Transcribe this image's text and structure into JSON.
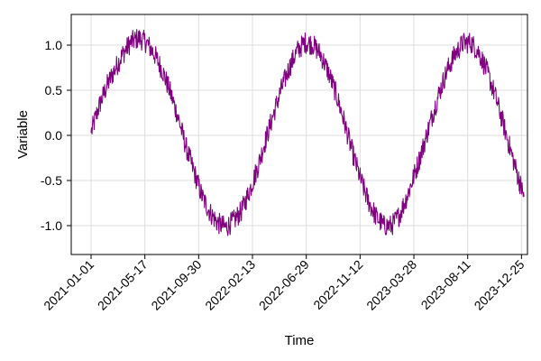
{
  "chart_data": {
    "type": "line",
    "title": "",
    "xlabel": "Time",
    "ylabel": "Variable",
    "x_range": [
      "2021-01-01",
      "2023-12-31"
    ],
    "ylim": [
      -1.32,
      1.34
    ],
    "grid": true,
    "x_ticks": [
      "2021-01-01",
      "2021-05-17",
      "2021-09-30",
      "2022-02-13",
      "2022-06-29",
      "2022-11-12",
      "2023-03-28",
      "2023-08-11",
      "2023-12-25"
    ],
    "y_ticks": [
      1.0,
      0.5,
      0.0,
      -0.5,
      -1.0
    ],
    "y_tick_labels": [
      "1.0",
      "0.5",
      "0.0",
      "-0.5",
      "-1.0"
    ],
    "series": [
      {
        "color": "#800080",
        "x": [
          "2021-01-01",
          "2021-01-21",
          "2021-02-10",
          "2021-03-02",
          "2021-03-22",
          "2021-04-11",
          "2021-05-01",
          "2021-05-21",
          "2021-06-10",
          "2021-06-30",
          "2021-07-20",
          "2021-08-09",
          "2021-08-29",
          "2021-09-18",
          "2021-10-08",
          "2021-10-28",
          "2021-11-17",
          "2021-12-07",
          "2021-12-27",
          "2022-01-16",
          "2022-02-05",
          "2022-02-25",
          "2022-03-17",
          "2022-04-06",
          "2022-04-26",
          "2022-05-16",
          "2022-06-05",
          "2022-06-25",
          "2022-07-15",
          "2022-08-04",
          "2022-08-24",
          "2022-09-13",
          "2022-10-03",
          "2022-10-23",
          "2022-11-12",
          "2022-12-02",
          "2022-12-22",
          "2023-01-11",
          "2023-01-31",
          "2023-02-20",
          "2023-03-12",
          "2023-04-01",
          "2023-04-21",
          "2023-05-11",
          "2023-05-31",
          "2023-06-20",
          "2023-07-10",
          "2023-07-30",
          "2023-08-19",
          "2023-09-08",
          "2023-09-28",
          "2023-10-18",
          "2023-11-07",
          "2023-11-27",
          "2023-12-17",
          "2023-12-31"
        ],
        "y": [
          0.03,
          0.32,
          0.55,
          0.73,
          0.9,
          1.03,
          1.08,
          1.03,
          0.9,
          0.72,
          0.48,
          0.2,
          -0.13,
          -0.4,
          -0.67,
          -0.85,
          -0.97,
          -1.02,
          -0.95,
          -0.84,
          -0.62,
          -0.37,
          -0.07,
          0.22,
          0.5,
          0.74,
          0.93,
          1.03,
          1.01,
          0.9,
          0.7,
          0.45,
          0.15,
          -0.18,
          -0.47,
          -0.72,
          -0.9,
          -1.0,
          -1.0,
          -0.88,
          -0.66,
          -0.4,
          -0.12,
          0.18,
          0.47,
          0.72,
          0.9,
          1.02,
          1.03,
          0.92,
          0.72,
          0.46,
          0.16,
          -0.16,
          -0.47,
          -0.68
        ]
      }
    ]
  }
}
